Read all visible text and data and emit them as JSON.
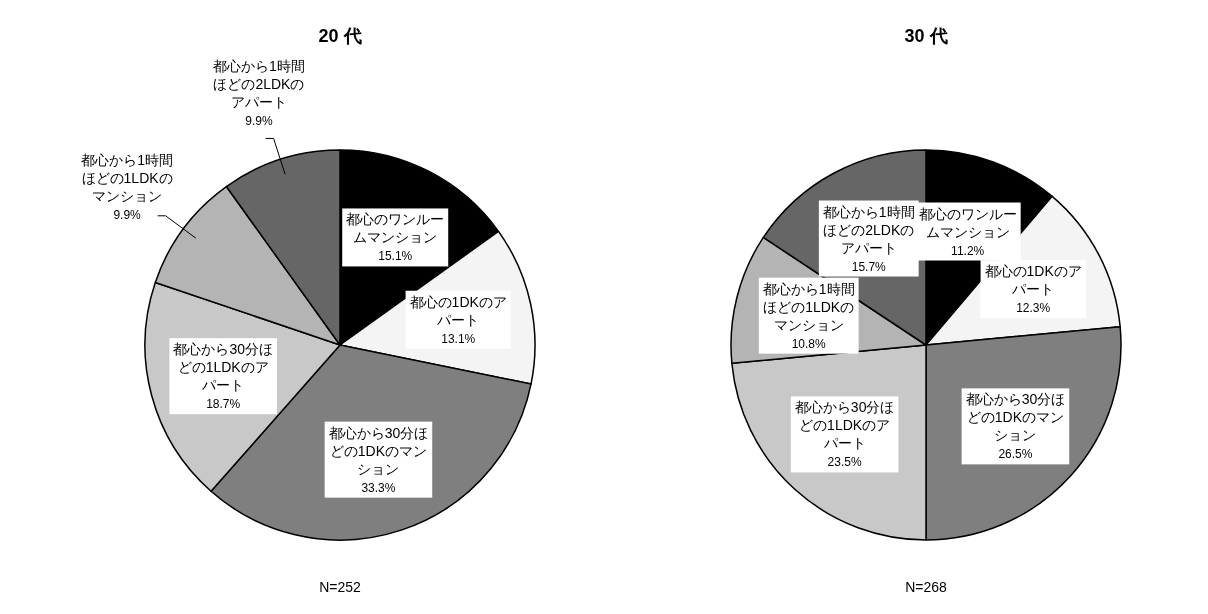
{
  "chart_data": [
    {
      "type": "pie",
      "title": "20 代",
      "categories": [
        "都心のワンルームマンション",
        "都心の1DKのアパート",
        "都心から30分ほどの1DKのマンション",
        "都心から30分ほどの1LDKのアパート",
        "都心から1時間ほどの1LDKのマンション",
        "都心から1時間ほどの2LDKのアパート"
      ],
      "values": [
        15.1,
        13.1,
        33.3,
        18.7,
        9.9,
        9.9
      ],
      "value_labels": [
        "15.1%",
        "13.1%",
        "33.3%",
        "18.7%",
        "9.9%",
        "9.9%"
      ],
      "colors": [
        "#000000",
        "#f4f4f4",
        "#7f7f7f",
        "#c8c8c8",
        "#b4b4b4",
        "#666666"
      ],
      "annotations": [
        "N=252"
      ]
    },
    {
      "type": "pie",
      "title": "30 代",
      "categories": [
        "都心のワンルームマンション",
        "都心の1DKのアパート",
        "都心から30分ほどの1DKのマンション",
        "都心から30分ほどの1LDKのアパート",
        "都心から1時間ほどの1LDKのマンション",
        "都心から1時間ほどの2LDKのアパート"
      ],
      "values": [
        11.2,
        12.3,
        26.5,
        23.5,
        10.8,
        15.7
      ],
      "value_labels": [
        "11.2%",
        "12.3%",
        "26.5%",
        "23.5%",
        "10.8%",
        "15.7%"
      ],
      "colors": [
        "#000000",
        "#f4f4f4",
        "#7f7f7f",
        "#c8c8c8",
        "#b4b4b4",
        "#666666"
      ],
      "annotations": [
        "N=268"
      ]
    }
  ]
}
